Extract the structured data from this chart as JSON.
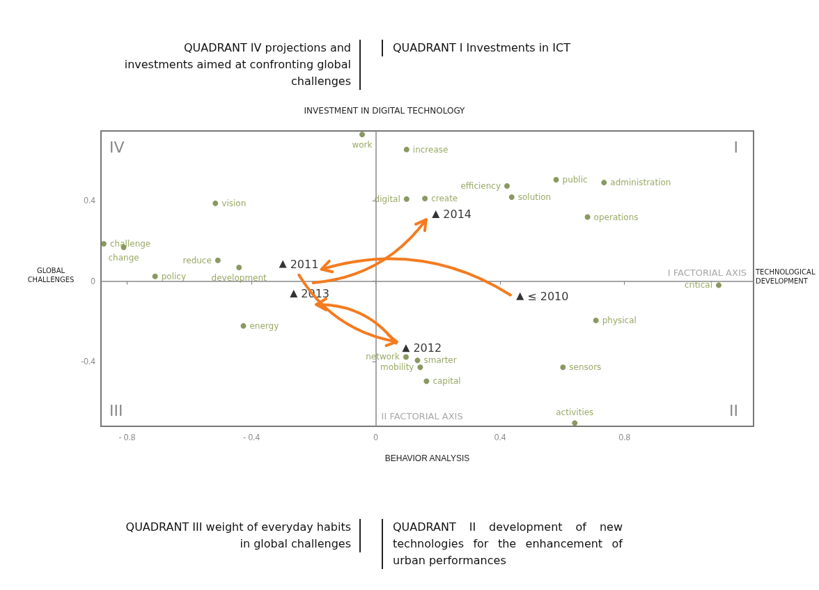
{
  "chart_data": {
    "type": "scatter",
    "title": "INVESTMENT IN DIGITAL TECHNOLOGY",
    "xlabel": "BEHAVIOR ANALYSIS",
    "ylabel": "GLOBAL CHALLENGES",
    "annotations": [
      "QUADRANT IV projections and investments aimed at confronting global challenges",
      "QUADRANT I Investments in ICT",
      "QUADRANT III weight of everyday habits in global challenges",
      "QUADRANT II development of new technologies for the enhancement of urban performances",
      "TECHNOLOGICAL DEVELOPMENT",
      "IV",
      "I",
      "III",
      "II",
      {
        "text": "work",
        "x": -0.044,
        "y": 0.728
      },
      {
        "text": "increase",
        "x": 0.099,
        "y": 0.653
      },
      {
        "text": "digital",
        "x": 0.099,
        "y": 0.407
      },
      {
        "text": "create",
        "x": 0.158,
        "y": 0.41
      },
      {
        "text": "efficiency",
        "x": 0.422,
        "y": 0.472
      },
      {
        "text": "solution",
        "x": 0.437,
        "y": 0.417
      },
      {
        "text": "public",
        "x": 0.58,
        "y": 0.503
      },
      {
        "text": "administration",
        "x": 0.734,
        "y": 0.489
      },
      {
        "text": "operations",
        "x": 0.681,
        "y": 0.318
      },
      {
        "text": "critical",
        "x": 1.103,
        "y": -0.02
      },
      {
        "text": "physical",
        "x": 0.708,
        "y": -0.195
      },
      {
        "text": "sensors",
        "x": 0.602,
        "y": -0.427
      },
      {
        "text": "activities",
        "x": 0.64,
        "y": -0.704
      },
      {
        "text": "network",
        "x": 0.097,
        "y": -0.376
      },
      {
        "text": "smarter",
        "x": 0.134,
        "y": -0.393
      },
      {
        "text": "mobility",
        "x": 0.143,
        "y": -0.427
      },
      {
        "text": "capital",
        "x": 0.163,
        "y": -0.496
      },
      {
        "text": "energy",
        "x": -0.426,
        "y": -0.222
      },
      {
        "text": "vision",
        "x": -0.516,
        "y": 0.386
      },
      {
        "text": "challenge",
        "x": -0.875,
        "y": 0.185
      },
      {
        "text": "change",
        "x": -0.811,
        "y": 0.168
      },
      {
        "text": "reduce",
        "x": -0.508,
        "y": 0.103
      },
      {
        "text": "development",
        "x": -0.44,
        "y": 0.068
      },
      {
        "text": "policy",
        "x": -0.71,
        "y": 0.024
      },
      {
        "text": "≤ 2010",
        "x": 0.464,
        "y": -0.075
      },
      {
        "text": "2011",
        "x": -0.299,
        "y": 0.085
      },
      {
        "text": "2012",
        "x": 0.097,
        "y": -0.332
      },
      {
        "text": "2013",
        "x": -0.264,
        "y": -0.062
      },
      {
        "text": "2014",
        "x": 0.193,
        "y": 0.332
      }
    ],
    "series": [
      {
        "color": "#6b7f3a",
        "marker": "circle",
        "x": [
          -0.044,
          0.099,
          0.099,
          0.158,
          0.422,
          0.437,
          0.58,
          0.734,
          0.681,
          1.103,
          0.708,
          0.602,
          0.64,
          0.097,
          0.134,
          0.143,
          0.163,
          -0.426,
          -0.516,
          -0.875,
          -0.811,
          -0.508,
          -0.44,
          -0.71
        ],
        "values": [
          0.728,
          0.653,
          0.407,
          0.41,
          0.472,
          0.417,
          0.503,
          0.489,
          0.318,
          -0.02,
          -0.195,
          -0.427,
          -0.704,
          -0.376,
          -0.393,
          -0.427,
          -0.496,
          -0.222,
          0.386,
          0.185,
          0.168,
          0.103,
          0.068,
          0.024
        ]
      },
      {
        "color": "#000000",
        "marker": "triangle",
        "x": [
          0.464,
          -0.299,
          0.097,
          -0.264,
          0.193
        ],
        "values": [
          -0.075,
          0.085,
          -0.332,
          -0.062,
          0.332
        ]
      }
    ],
    "xlim": [
      -0.884,
      1.215
    ],
    "ylim": [
      -0.72,
      0.745
    ],
    "xticks": [
      {
        "value": -0.8,
        "label": "- 0.8"
      },
      {
        "value": -0.4,
        "label": "- 0.4"
      },
      0,
      0.4,
      0.8
    ],
    "yticks": [
      -0.4,
      0,
      0.4
    ],
    "ref_lines": [
      {
        "axis": "y",
        "value": 0,
        "label": "I FACTORIAL AXIS",
        "color": "#888888"
      },
      {
        "axis": "x",
        "value": 0,
        "label": "II FACTORIAL AXIS",
        "color": "#888888"
      }
    ],
    "grid": false
  }
}
